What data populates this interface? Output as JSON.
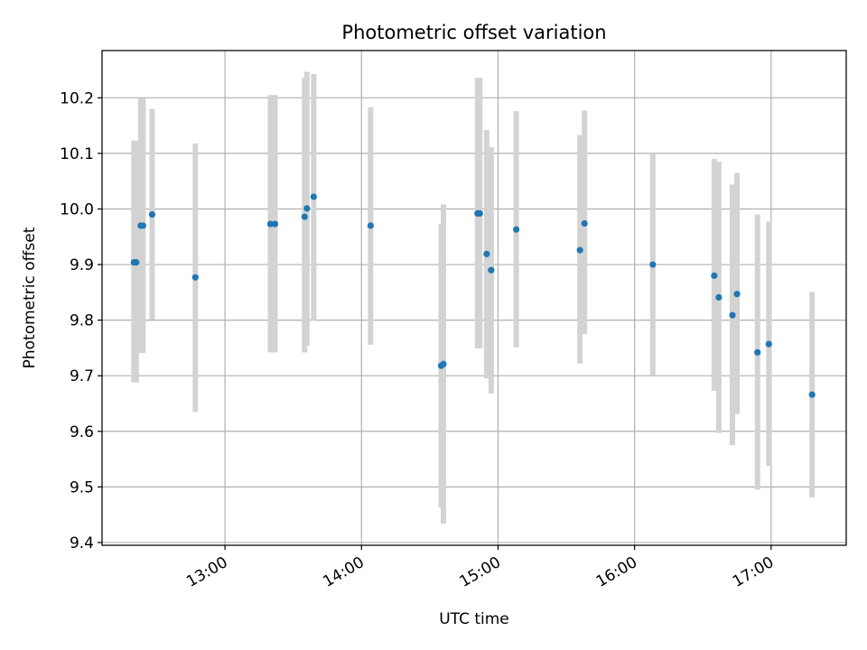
{
  "chart_data": {
    "type": "scatter",
    "title": "Photometric offset variation",
    "xlabel": "UTC time",
    "ylabel": "Photometric offset",
    "x_tick_labels": [
      "13:00",
      "14:00",
      "15:00",
      "16:00",
      "17:00"
    ],
    "x_tick_times": [
      "13:00",
      "14:00",
      "15:00",
      "16:00",
      "17:00"
    ],
    "xlim": [
      "12:06",
      "17:33"
    ],
    "y_tick_labels": [
      "9.4",
      "9.5",
      "9.6",
      "9.7",
      "9.8",
      "9.9",
      "10.0",
      "10.1",
      "10.2"
    ],
    "y_ticks": [
      9.4,
      9.5,
      9.6,
      9.7,
      9.8,
      9.9,
      10.0,
      10.1,
      10.2
    ],
    "ylim": [
      9.395,
      10.285
    ],
    "grid": true,
    "colors": {
      "point": "#1f77b4",
      "errorbar": "#d3d3d3",
      "grid": "#b0b0b0"
    },
    "points": [
      {
        "time": "12:20",
        "y": 9.904,
        "low": 9.688,
        "high": 10.123
      },
      {
        "time": "12:21",
        "y": 9.904,
        "low": 9.688,
        "high": 10.123
      },
      {
        "time": "12:23",
        "y": 9.97,
        "low": 9.741,
        "high": 10.199
      },
      {
        "time": "12:24",
        "y": 9.97,
        "low": 9.741,
        "high": 10.199
      },
      {
        "time": "12:28",
        "y": 9.99,
        "low": 9.801,
        "high": 10.18
      },
      {
        "time": "12:47",
        "y": 9.877,
        "low": 9.635,
        "high": 10.118
      },
      {
        "time": "13:20",
        "y": 9.973,
        "low": 9.742,
        "high": 10.205
      },
      {
        "time": "13:22",
        "y": 9.973,
        "low": 9.742,
        "high": 10.205
      },
      {
        "time": "13:35",
        "y": 9.986,
        "low": 9.742,
        "high": 10.236
      },
      {
        "time": "13:36",
        "y": 10.001,
        "low": 9.754,
        "high": 10.247
      },
      {
        "time": "13:39",
        "y": 10.022,
        "low": 9.799,
        "high": 10.243
      },
      {
        "time": "14:04",
        "y": 9.97,
        "low": 9.756,
        "high": 10.183
      },
      {
        "time": "14:35",
        "y": 9.718,
        "low": 9.463,
        "high": 9.973
      },
      {
        "time": "14:36",
        "y": 9.721,
        "low": 9.434,
        "high": 10.008
      },
      {
        "time": "14:51",
        "y": 9.992,
        "low": 9.749,
        "high": 10.236
      },
      {
        "time": "14:52",
        "y": 9.992,
        "low": 9.749,
        "high": 10.236
      },
      {
        "time": "14:55",
        "y": 9.919,
        "low": 9.695,
        "high": 10.142
      },
      {
        "time": "14:57",
        "y": 9.89,
        "low": 9.668,
        "high": 10.111
      },
      {
        "time": "15:08",
        "y": 9.963,
        "low": 9.751,
        "high": 10.176
      },
      {
        "time": "15:36",
        "y": 9.926,
        "low": 9.722,
        "high": 10.133
      },
      {
        "time": "15:38",
        "y": 9.974,
        "low": 9.775,
        "high": 10.177
      },
      {
        "time": "16:08",
        "y": 9.9,
        "low": 9.701,
        "high": 10.1
      },
      {
        "time": "16:35",
        "y": 9.88,
        "low": 9.673,
        "high": 10.09
      },
      {
        "time": "16:37",
        "y": 9.841,
        "low": 9.597,
        "high": 10.085
      },
      {
        "time": "16:43",
        "y": 9.809,
        "low": 9.575,
        "high": 10.044
      },
      {
        "time": "16:45",
        "y": 9.847,
        "low": 9.631,
        "high": 10.065
      },
      {
        "time": "16:54",
        "y": 9.742,
        "low": 9.495,
        "high": 9.99
      },
      {
        "time": "16:59",
        "y": 9.757,
        "low": 9.538,
        "high": 9.977
      },
      {
        "time": "17:18",
        "y": 9.666,
        "low": 9.481,
        "high": 9.851
      }
    ]
  }
}
